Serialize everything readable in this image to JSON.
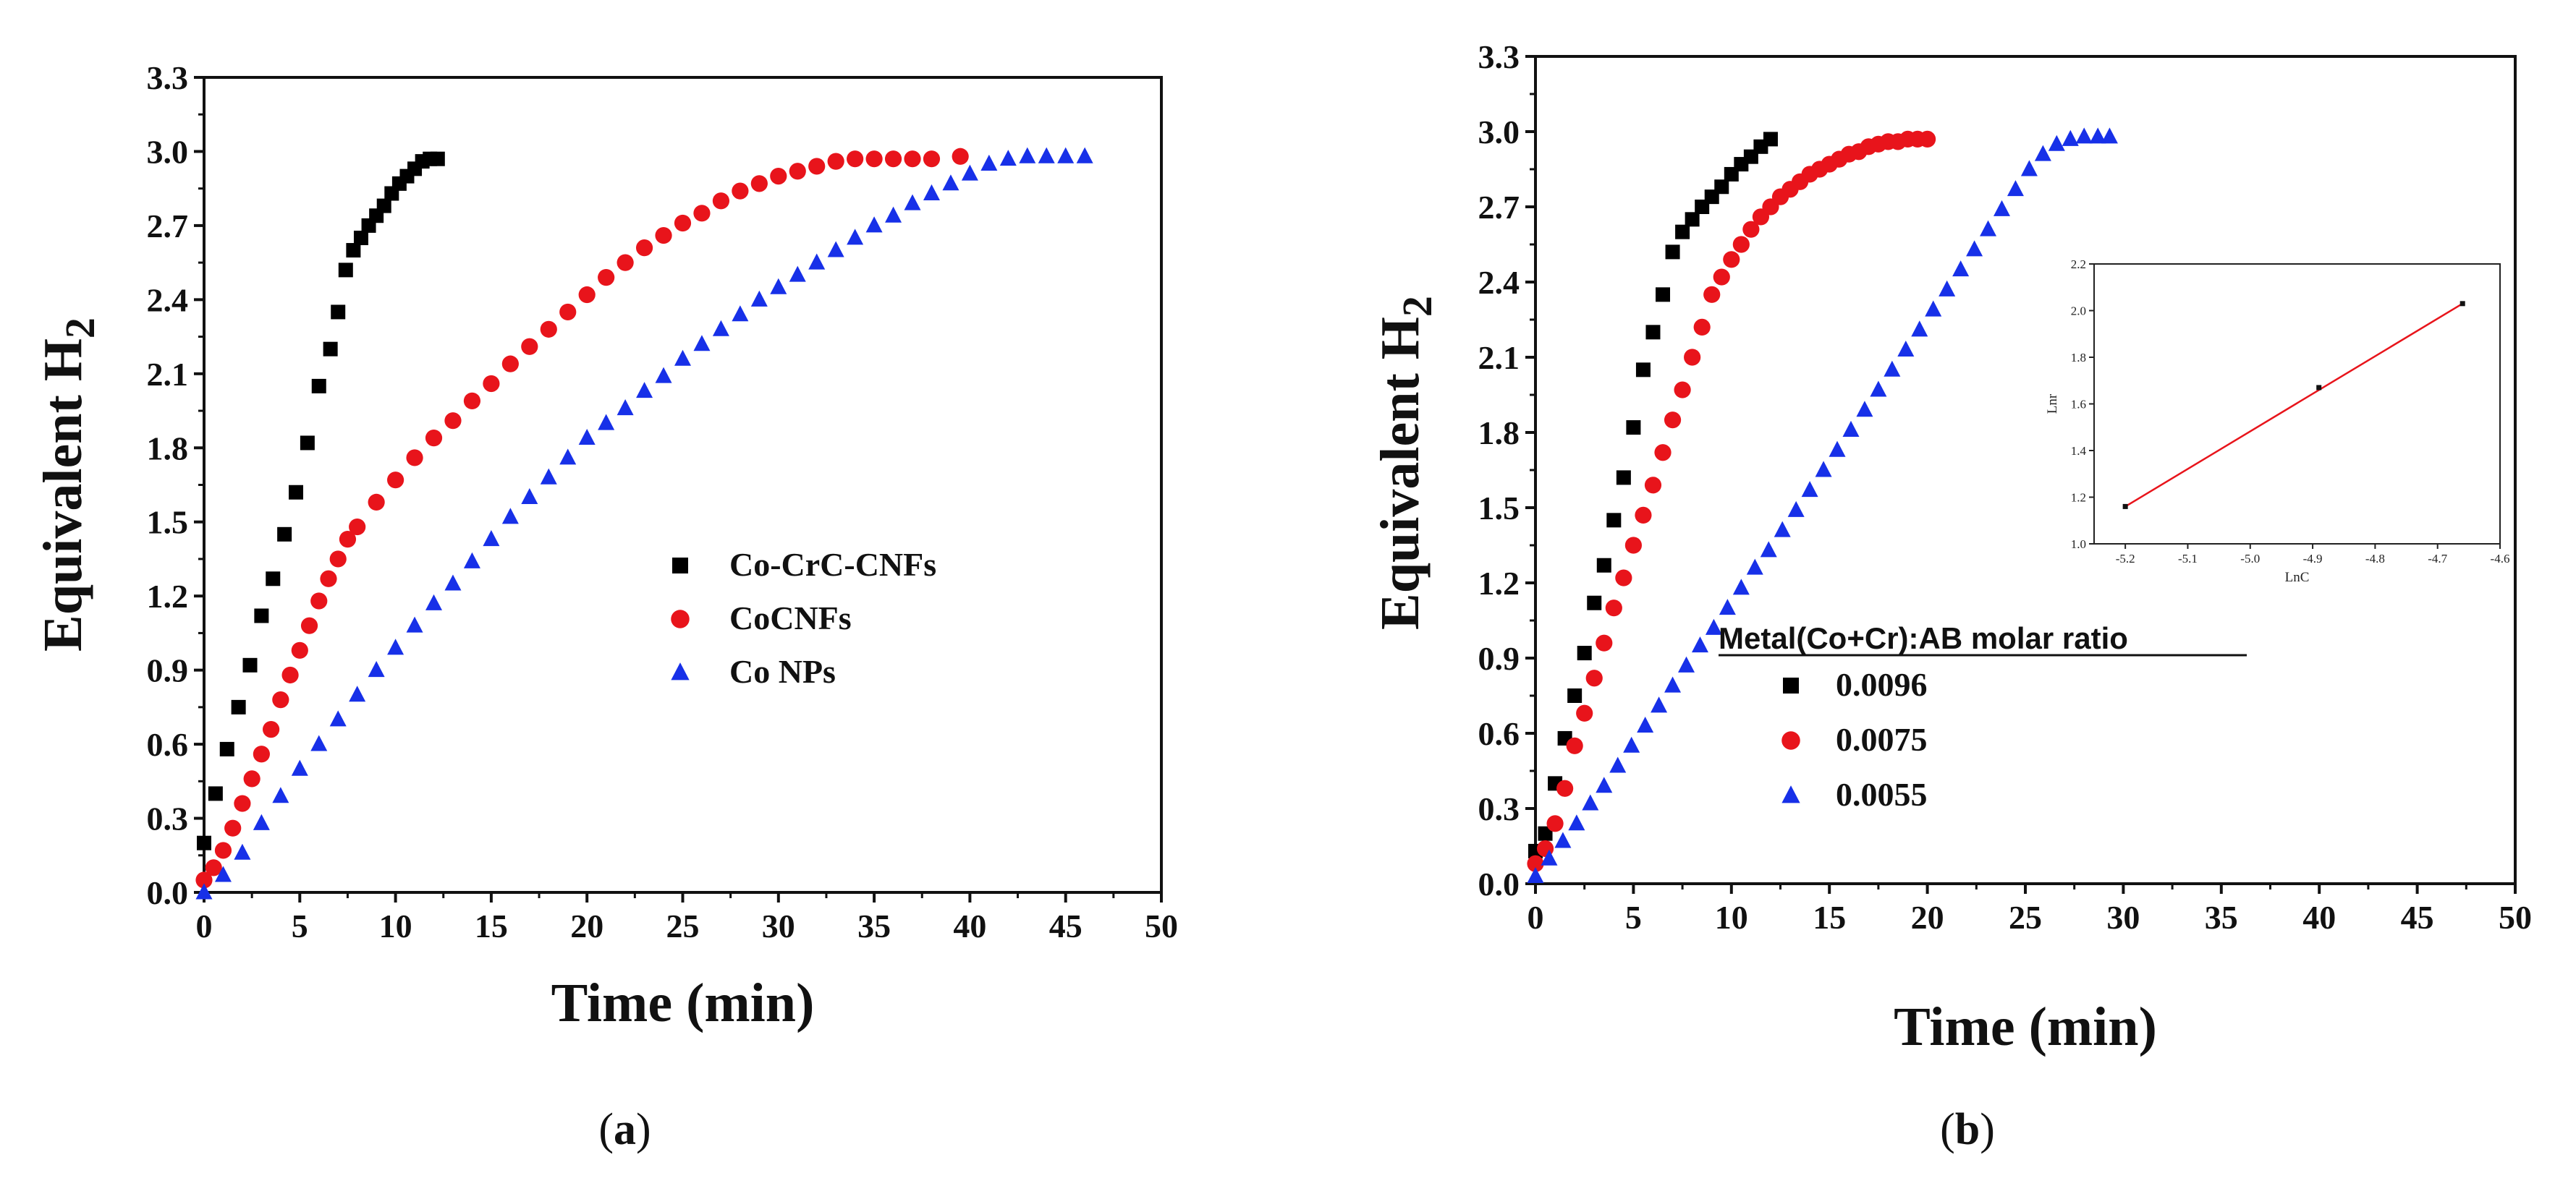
{
  "chart_data": [
    {
      "type": "scatter",
      "panel_caption_open": "(",
      "panel_caption": "a",
      "panel_caption_close": ")",
      "xlabel": "Time (min)",
      "ylabel": "Equivalent H",
      "ylabel_sub": "2",
      "xlim": [
        0,
        50
      ],
      "ylim": [
        0,
        3.3
      ],
      "xticks": [
        "0",
        "5",
        "10",
        "15",
        "20",
        "25",
        "30",
        "35",
        "40",
        "45",
        "50"
      ],
      "yticks": [
        "0.0",
        "0.3",
        "0.6",
        "0.9",
        "1.2",
        "1.5",
        "1.8",
        "2.1",
        "2.4",
        "2.7",
        "3.0",
        "3.3"
      ],
      "legend_title": "",
      "legend_position": "center-right",
      "series": [
        {
          "name": "Co-CrC-CNFs",
          "marker": "square",
          "color": "#000000",
          "x": [
            0,
            0.6,
            1.2,
            1.8,
            2.4,
            3.0,
            3.6,
            4.2,
            4.8,
            5.4,
            6.0,
            6.6,
            7.0,
            7.4,
            7.8,
            8.2,
            8.6,
            9.0,
            9.4,
            9.8,
            10.2,
            10.6,
            11.0,
            11.4,
            11.8,
            12.2
          ],
          "y": [
            0.2,
            0.4,
            0.58,
            0.75,
            0.92,
            1.12,
            1.27,
            1.45,
            1.62,
            1.82,
            2.05,
            2.2,
            2.35,
            2.52,
            2.6,
            2.65,
            2.7,
            2.74,
            2.78,
            2.83,
            2.87,
            2.9,
            2.93,
            2.96,
            2.97,
            2.97
          ]
        },
        {
          "name": "CoCNFs",
          "marker": "circle",
          "color": "#e8141b",
          "x": [
            0,
            0.5,
            1,
            1.5,
            2,
            2.5,
            3,
            3.5,
            4,
            4.5,
            5,
            5.5,
            6,
            6.5,
            7,
            7.5,
            8,
            9,
            10,
            11,
            12,
            13,
            14,
            15,
            16,
            17,
            18,
            19,
            20,
            21,
            22,
            23,
            24,
            25,
            26,
            27,
            28,
            29,
            30,
            31,
            32,
            33,
            34,
            35,
            36,
            37,
            38,
            39.5
          ],
          "y": [
            0.05,
            0.1,
            0.17,
            0.26,
            0.36,
            0.46,
            0.56,
            0.66,
            0.78,
            0.88,
            0.98,
            1.08,
            1.18,
            1.27,
            1.35,
            1.43,
            1.48,
            1.58,
            1.67,
            1.76,
            1.84,
            1.91,
            1.99,
            2.06,
            2.14,
            2.21,
            2.28,
            2.35,
            2.42,
            2.49,
            2.55,
            2.61,
            2.66,
            2.71,
            2.75,
            2.8,
            2.84,
            2.87,
            2.9,
            2.92,
            2.94,
            2.96,
            2.97,
            2.97,
            2.97,
            2.97,
            2.97,
            2.98
          ]
        },
        {
          "name": "Co NPs",
          "marker": "triangle",
          "color": "#1730e8",
          "x": [
            0,
            1,
            2,
            3,
            4,
            5,
            6,
            7,
            8,
            9,
            10,
            11,
            12,
            13,
            14,
            15,
            16,
            17,
            18,
            19,
            20,
            21,
            22,
            23,
            24,
            25,
            26,
            27,
            28,
            29,
            30,
            31,
            32,
            33,
            34,
            35,
            36,
            37,
            38,
            39,
            40,
            41,
            42,
            43,
            44,
            45,
            46
          ],
          "y": [
            0.0,
            0.07,
            0.16,
            0.28,
            0.39,
            0.5,
            0.6,
            0.7,
            0.8,
            0.9,
            0.99,
            1.08,
            1.17,
            1.25,
            1.34,
            1.43,
            1.52,
            1.6,
            1.68,
            1.76,
            1.84,
            1.9,
            1.96,
            2.03,
            2.09,
            2.16,
            2.22,
            2.28,
            2.34,
            2.4,
            2.45,
            2.5,
            2.55,
            2.6,
            2.65,
            2.7,
            2.74,
            2.79,
            2.83,
            2.87,
            2.91,
            2.95,
            2.97,
            2.98,
            2.98,
            2.98,
            2.98
          ]
        }
      ]
    },
    {
      "type": "scatter",
      "panel_caption_open": "(",
      "panel_caption": "b",
      "panel_caption_close": ")",
      "xlabel": "Time (min)",
      "ylabel": "Equivalent H",
      "ylabel_sub": "2",
      "xlim": [
        0,
        50
      ],
      "ylim": [
        0,
        3.3
      ],
      "xticks": [
        "0",
        "5",
        "10",
        "15",
        "20",
        "25",
        "30",
        "35",
        "40",
        "45",
        "50"
      ],
      "yticks": [
        "0.0",
        "0.3",
        "0.6",
        "0.9",
        "1.2",
        "1.5",
        "1.8",
        "2.1",
        "2.4",
        "2.7",
        "3.0",
        "3.3"
      ],
      "legend_title": "Metal(Co+Cr):AB  molar ratio",
      "legend_position": "bottom-center",
      "series": [
        {
          "name": "0.0096",
          "marker": "square",
          "color": "#000000",
          "x": [
            0,
            0.5,
            1,
            1.5,
            2,
            2.5,
            3,
            3.5,
            4,
            4.5,
            5,
            5.5,
            6,
            6.5,
            7,
            7.5,
            8,
            8.5,
            9,
            9.5,
            10,
            10.5,
            11,
            11.5,
            12
          ],
          "y": [
            0.13,
            0.2,
            0.4,
            0.58,
            0.75,
            0.92,
            1.12,
            1.27,
            1.45,
            1.62,
            1.82,
            2.05,
            2.2,
            2.35,
            2.52,
            2.6,
            2.65,
            2.7,
            2.74,
            2.78,
            2.83,
            2.87,
            2.9,
            2.94,
            2.97
          ]
        },
        {
          "name": "0.0075",
          "marker": "circle",
          "color": "#e8141b",
          "x": [
            0,
            0.5,
            1,
            1.5,
            2,
            2.5,
            3,
            3.5,
            4,
            4.5,
            5,
            5.5,
            6,
            6.5,
            7,
            7.5,
            8,
            8.5,
            9,
            9.5,
            10,
            10.5,
            11,
            11.5,
            12,
            12.5,
            13,
            13.5,
            14,
            14.5,
            15,
            15.5,
            16,
            16.5,
            17,
            17.5,
            18,
            18.5,
            19,
            19.5,
            20
          ],
          "y": [
            0.08,
            0.14,
            0.24,
            0.38,
            0.55,
            0.68,
            0.82,
            0.96,
            1.1,
            1.22,
            1.35,
            1.47,
            1.59,
            1.72,
            1.85,
            1.97,
            2.1,
            2.22,
            2.35,
            2.42,
            2.49,
            2.55,
            2.61,
            2.66,
            2.7,
            2.74,
            2.77,
            2.8,
            2.83,
            2.85,
            2.87,
            2.89,
            2.91,
            2.92,
            2.94,
            2.95,
            2.96,
            2.96,
            2.97,
            2.97,
            2.97
          ]
        },
        {
          "name": "0.0055",
          "marker": "triangle",
          "color": "#1730e8",
          "x": [
            0,
            0.7,
            1.4,
            2.1,
            2.8,
            3.5,
            4.2,
            4.9,
            5.6,
            6.3,
            7,
            7.7,
            8.4,
            9.1,
            9.8,
            10.5,
            11.2,
            11.9,
            12.6,
            13.3,
            14,
            14.7,
            15.4,
            16.1,
            16.8,
            17.5,
            18.2,
            18.9,
            19.6,
            20.3,
            21,
            21.7,
            22.4,
            23.1,
            23.8,
            24.5,
            25.2,
            25.9,
            26.6,
            27.3,
            28,
            28.7,
            29.3
          ],
          "y": [
            0.03,
            0.1,
            0.17,
            0.24,
            0.32,
            0.39,
            0.47,
            0.55,
            0.63,
            0.71,
            0.79,
            0.87,
            0.95,
            1.02,
            1.1,
            1.18,
            1.26,
            1.33,
            1.41,
            1.49,
            1.57,
            1.65,
            1.73,
            1.81,
            1.89,
            1.97,
            2.05,
            2.13,
            2.21,
            2.29,
            2.37,
            2.45,
            2.53,
            2.61,
            2.69,
            2.77,
            2.85,
            2.91,
            2.95,
            2.97,
            2.98,
            2.98,
            2.98
          ]
        }
      ],
      "inset": {
        "type": "line",
        "xlabel": "LnC",
        "ylabel": "Lnr",
        "xlim": [
          -5.25,
          -4.6
        ],
        "ylim": [
          1.0,
          2.2
        ],
        "xticks": [
          "-5.2",
          "-5.1",
          "-5.0",
          "-4.9",
          "-4.8",
          "-4.7",
          "-4.6"
        ],
        "yticks": [
          "1.0",
          "1.2",
          "1.4",
          "1.6",
          "1.8",
          "2.0",
          "2.2"
        ],
        "x": [
          -5.2,
          -4.89,
          -4.66
        ],
        "y": [
          1.16,
          1.67,
          2.03
        ],
        "fit_color": "#e8141b"
      }
    }
  ]
}
